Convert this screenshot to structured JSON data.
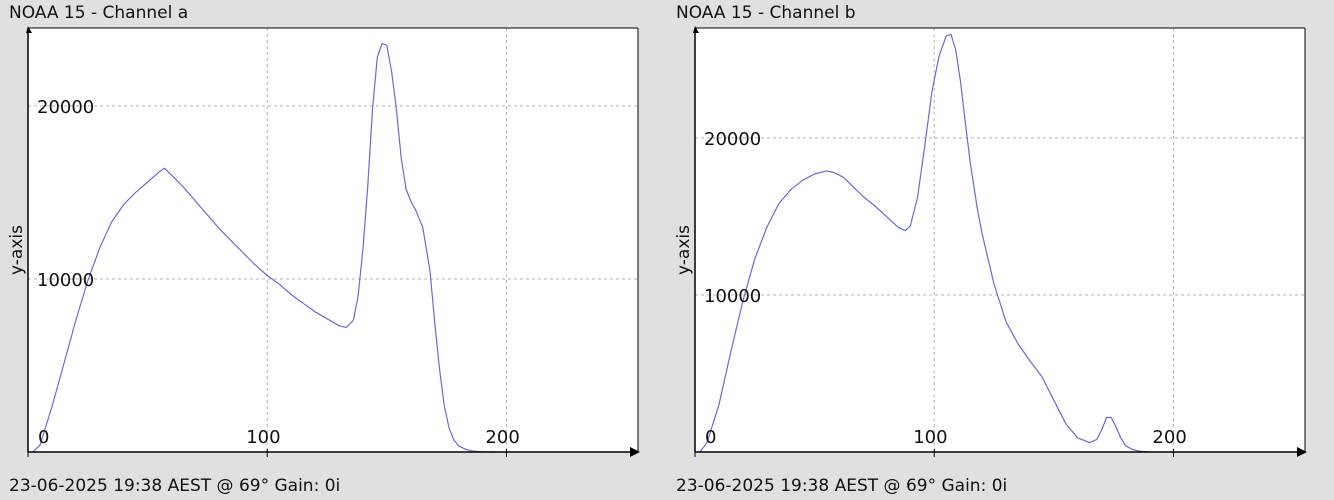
{
  "chart_data": [
    {
      "type": "line",
      "title": "NOAA 15 - Channel a",
      "footer": "23-06-2025 19:38 AEST @ 69° Gain: 0і",
      "xlabel": "",
      "ylabel": "y-axis",
      "xlim": [
        0,
        255
      ],
      "ylim": [
        0,
        24500
      ],
      "x_ticks": [
        0,
        100,
        200
      ],
      "y_ticks": [
        10000,
        20000
      ],
      "grid": true,
      "line_color": "#6a6ad8",
      "series": [
        {
          "x": [
            2,
            5,
            10,
            15,
            20,
            25,
            30,
            35,
            40,
            45,
            50,
            55,
            57,
            60,
            65,
            70,
            75,
            80,
            85,
            90,
            95,
            100,
            105,
            110,
            115,
            120,
            125,
            130,
            133,
            136,
            138,
            140,
            142,
            144,
            146,
            148,
            150,
            152,
            154,
            156,
            158,
            160,
            162,
            165,
            168,
            170,
            172,
            174,
            176,
            178,
            180,
            183,
            186,
            190,
            195
          ],
          "y": [
            0,
            400,
            2600,
            5100,
            7600,
            9900,
            11800,
            13300,
            14300,
            15000,
            15600,
            16200,
            16400,
            16000,
            15300,
            14500,
            13700,
            12900,
            12200,
            11500,
            10800,
            10200,
            9700,
            9100,
            8600,
            8100,
            7700,
            7300,
            7200,
            7600,
            9000,
            11700,
            15300,
            19800,
            22800,
            23600,
            23500,
            22000,
            19800,
            17000,
            15200,
            14500,
            14000,
            13000,
            10500,
            7500,
            4800,
            2700,
            1400,
            700,
            350,
            150,
            50,
            10,
            0
          ]
        }
      ]
    },
    {
      "type": "line",
      "title": "NOAA 15 - Channel b",
      "footer": "23-06-2025 19:38 AEST @ 69° Gain: 0і",
      "xlabel": "",
      "ylabel": "y-axis",
      "xlim": [
        0,
        255
      ],
      "ylim": [
        0,
        27000
      ],
      "x_ticks": [
        0,
        100,
        200
      ],
      "y_ticks": [
        10000,
        20000
      ],
      "grid": true,
      "line_color": "#6a6ad8",
      "series": [
        {
          "x": [
            2,
            5,
            10,
            15,
            20,
            25,
            30,
            35,
            40,
            45,
            50,
            55,
            58,
            62,
            66,
            70,
            75,
            80,
            85,
            88,
            90,
            93,
            96,
            99,
            102,
            105,
            107,
            109,
            111,
            113,
            115,
            118,
            120,
            125,
            130,
            135,
            140,
            145,
            150,
            155,
            160,
            165,
            168,
            170,
            172,
            174,
            176,
            178,
            180,
            183,
            186,
            190
          ],
          "y": [
            0,
            600,
            3000,
            6400,
            9600,
            12300,
            14300,
            15800,
            16700,
            17300,
            17700,
            17900,
            17800,
            17500,
            16900,
            16300,
            15700,
            15000,
            14300,
            14100,
            14400,
            16200,
            19400,
            22900,
            25200,
            26500,
            26600,
            25600,
            23600,
            21000,
            18500,
            15500,
            13900,
            10700,
            8300,
            6900,
            5800,
            4800,
            3300,
            1800,
            900,
            600,
            800,
            1400,
            2200,
            2200,
            1600,
            900,
            400,
            150,
            50,
            0
          ]
        }
      ]
    }
  ]
}
